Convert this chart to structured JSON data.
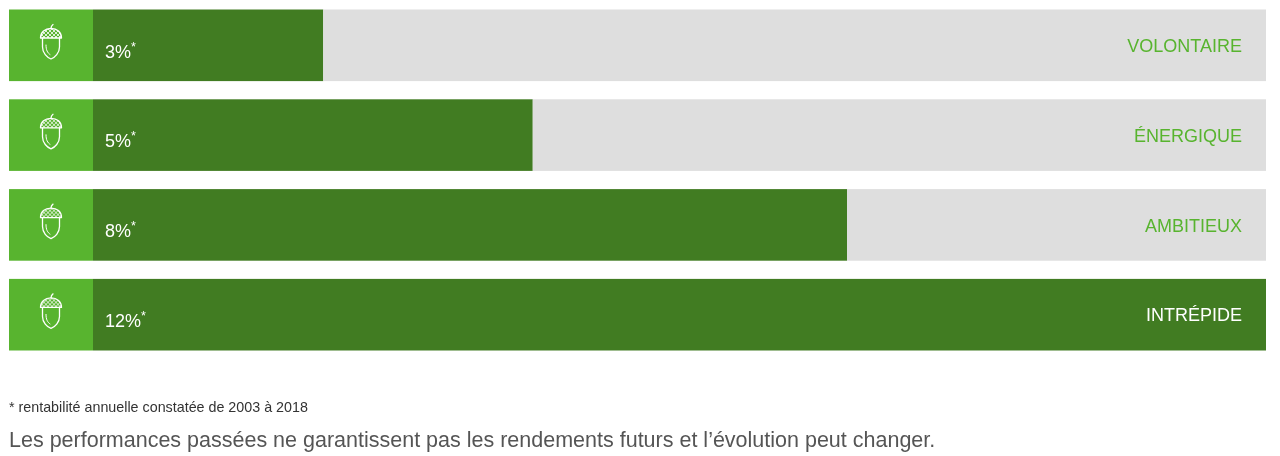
{
  "chart_data": {
    "type": "bar",
    "orientation": "horizontal",
    "stacked": true,
    "categories": [
      "VOLONTAIRE",
      "ÉNERGIQUE",
      "AMBITIEUX",
      "INTRÉPIDE"
    ],
    "series": [
      {
        "color": "#417c22",
        "values": [
          3,
          5,
          8,
          12
        ],
        "value_labels": [
          "3%$^{*}$",
          "5%$^{*}$",
          "8%$^{*}$",
          "12%$^{*}$"
        ]
      },
      {
        "color": "#dedede",
        "values": [
          9,
          7,
          4,
          0
        ]
      }
    ],
    "tick_labels": "y",
    "annotations": [
      "* rentabilité annuelle constatée de 2003 à 2018",
      "Les performances passées ne garantissent pas les rendements futurs et l’évolution peut changer."
    ]
  }
}
